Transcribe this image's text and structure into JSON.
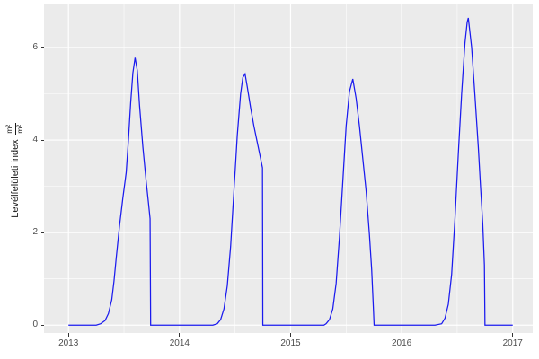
{
  "chart_data": {
    "type": "line",
    "title": "",
    "xlabel": "",
    "ylabel": "Levélfelületi index",
    "ylabel_unit": {
      "numerator": "m²",
      "denominator": "m²"
    },
    "x_ticks": [
      2013,
      2014,
      2015,
      2016,
      2017
    ],
    "x_minor_ticks": [
      2013.5,
      2014.5,
      2015.5,
      2016.5
    ],
    "y_ticks": [
      0,
      2,
      4,
      6
    ],
    "y_minor_ticks": [
      1,
      3,
      5
    ],
    "x_range": [
      2012.78,
      2017.18
    ],
    "y_range": [
      -0.17,
      6.95
    ],
    "grid": true,
    "legend_position": "none",
    "panel_bg": "#EBEBEB",
    "grid_major_color": "#FFFFFF",
    "grid_minor_color": "#FFFFFF",
    "axis_text_color": "#4d4d4d",
    "line_color": "#1a1aee",
    "series": [
      {
        "name": "Levélfelületi index (LAI)",
        "points": [
          [
            2013.0,
            0
          ],
          [
            2013.05,
            0
          ],
          [
            2013.1,
            0
          ],
          [
            2013.15,
            0
          ],
          [
            2013.2,
            0
          ],
          [
            2013.25,
            0
          ],
          [
            2013.29,
            0.03
          ],
          [
            2013.33,
            0.1
          ],
          [
            2013.36,
            0.25
          ],
          [
            2013.39,
            0.55
          ],
          [
            2013.41,
            0.95
          ],
          [
            2013.43,
            1.45
          ],
          [
            2013.46,
            2.15
          ],
          [
            2013.49,
            2.75
          ],
          [
            2013.52,
            3.3
          ],
          [
            2013.54,
            4.0
          ],
          [
            2013.56,
            4.8
          ],
          [
            2013.58,
            5.45
          ],
          [
            2013.6,
            5.78
          ],
          [
            2013.62,
            5.5
          ],
          [
            2013.64,
            4.75
          ],
          [
            2013.67,
            3.85
          ],
          [
            2013.7,
            3.1
          ],
          [
            2013.72,
            2.65
          ],
          [
            2013.735,
            2.3
          ],
          [
            2013.74,
            0
          ],
          [
            2013.8,
            0
          ],
          [
            2013.9,
            0
          ],
          [
            2014.0,
            0
          ],
          [
            2014.1,
            0
          ],
          [
            2014.2,
            0
          ],
          [
            2014.3,
            0
          ],
          [
            2014.34,
            0.03
          ],
          [
            2014.37,
            0.12
          ],
          [
            2014.4,
            0.35
          ],
          [
            2014.43,
            0.85
          ],
          [
            2014.46,
            1.7
          ],
          [
            2014.49,
            2.9
          ],
          [
            2014.52,
            4.1
          ],
          [
            2014.55,
            5.0
          ],
          [
            2014.57,
            5.35
          ],
          [
            2014.59,
            5.43
          ],
          [
            2014.61,
            5.15
          ],
          [
            2014.64,
            4.7
          ],
          [
            2014.67,
            4.3
          ],
          [
            2014.7,
            3.95
          ],
          [
            2014.73,
            3.6
          ],
          [
            2014.747,
            3.4
          ],
          [
            2014.75,
            0
          ],
          [
            2014.8,
            0
          ],
          [
            2014.9,
            0
          ],
          [
            2015.0,
            0
          ],
          [
            2015.1,
            0
          ],
          [
            2015.2,
            0
          ],
          [
            2015.3,
            0
          ],
          [
            2015.32,
            0.03
          ],
          [
            2015.35,
            0.12
          ],
          [
            2015.38,
            0.35
          ],
          [
            2015.41,
            0.9
          ],
          [
            2015.44,
            1.9
          ],
          [
            2015.47,
            3.1
          ],
          [
            2015.5,
            4.3
          ],
          [
            2015.53,
            5.05
          ],
          [
            2015.56,
            5.32
          ],
          [
            2015.59,
            4.9
          ],
          [
            2015.62,
            4.3
          ],
          [
            2015.65,
            3.6
          ],
          [
            2015.68,
            2.9
          ],
          [
            2015.71,
            1.95
          ],
          [
            2015.73,
            1.2
          ],
          [
            2015.745,
            0.4
          ],
          [
            2015.752,
            0
          ],
          [
            2015.8,
            0
          ],
          [
            2015.9,
            0
          ],
          [
            2016.0,
            0
          ],
          [
            2016.1,
            0
          ],
          [
            2016.2,
            0
          ],
          [
            2016.3,
            0
          ],
          [
            2016.36,
            0.03
          ],
          [
            2016.39,
            0.15
          ],
          [
            2016.42,
            0.45
          ],
          [
            2016.45,
            1.1
          ],
          [
            2016.48,
            2.3
          ],
          [
            2016.51,
            3.7
          ],
          [
            2016.54,
            5.0
          ],
          [
            2016.57,
            6.1
          ],
          [
            2016.59,
            6.55
          ],
          [
            2016.6,
            6.64
          ],
          [
            2016.63,
            6.0
          ],
          [
            2016.66,
            4.95
          ],
          [
            2016.69,
            3.85
          ],
          [
            2016.71,
            3.0
          ],
          [
            2016.73,
            2.2
          ],
          [
            2016.745,
            1.3
          ],
          [
            2016.75,
            0
          ],
          [
            2016.8,
            0
          ],
          [
            2016.9,
            0
          ],
          [
            2017.0,
            0
          ]
        ]
      }
    ],
    "annotations": {
      "seasonal_peaks": [
        {
          "t": 2013.6,
          "lai": 5.78
        },
        {
          "t": 2014.59,
          "lai": 5.43
        },
        {
          "t": 2015.56,
          "lai": 5.32
        },
        {
          "t": 2016.6,
          "lai": 6.64
        }
      ]
    }
  }
}
